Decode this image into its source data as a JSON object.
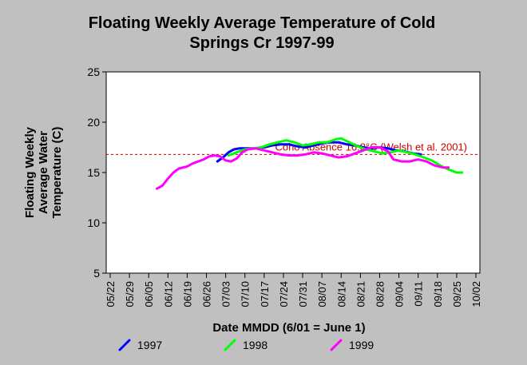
{
  "chart_data": {
    "type": "line",
    "title_lines": [
      "Floating Weekly Average Temperature of Cold",
      "Springs Cr 1997-99"
    ],
    "ylabel_lines": [
      "Floating Weekly",
      "Average Water",
      "Temperature (C)"
    ],
    "xlabel": "Date MMDD (6/01 = June 1)",
    "ylim": [
      5,
      25
    ],
    "yticks": [
      5,
      10,
      15,
      20,
      25
    ],
    "x_start": "05/22",
    "x_end": "10/02",
    "xtick_labels": [
      "05/22",
      "05/29",
      "06/05",
      "06/12",
      "06/19",
      "06/26",
      "07/03",
      "07/10",
      "07/17",
      "07/24",
      "07/31",
      "08/07",
      "08/14",
      "08/21",
      "08/28",
      "09/04",
      "09/11",
      "09/18",
      "09/25",
      "10/02"
    ],
    "reference_line": {
      "y": 16.8,
      "label": "Coho Absence 16.8°C (Welsh et al. 2001)",
      "color": "#cc0000"
    },
    "series": [
      {
        "name": "1997",
        "color": "#0000ff",
        "points": [
          [
            "06/30",
            16.1
          ],
          [
            "07/02",
            16.5
          ],
          [
            "07/04",
            17.0
          ],
          [
            "07/06",
            17.3
          ],
          [
            "07/08",
            17.4
          ],
          [
            "07/11",
            17.4
          ],
          [
            "07/14",
            17.4
          ],
          [
            "07/17",
            17.5
          ],
          [
            "07/20",
            17.7
          ],
          [
            "07/23",
            17.8
          ],
          [
            "07/26",
            17.8
          ],
          [
            "07/29",
            17.6
          ],
          [
            "08/01",
            17.5
          ],
          [
            "08/04",
            17.7
          ],
          [
            "08/07",
            17.9
          ],
          [
            "08/10",
            18.0
          ],
          [
            "08/13",
            18.0
          ],
          [
            "08/16",
            17.8
          ],
          [
            "08/19",
            17.7
          ],
          [
            "08/22",
            17.5
          ],
          [
            "08/25",
            17.4
          ],
          [
            "08/28",
            17.5
          ],
          [
            "08/31",
            17.4
          ],
          [
            "09/03",
            17.2
          ],
          [
            "09/06",
            17.1
          ],
          [
            "09/09",
            16.9
          ],
          [
            "09/12",
            16.8
          ]
        ]
      },
      {
        "name": "1998",
        "color": "#00ff00",
        "points": [
          [
            "07/04",
            16.7
          ],
          [
            "07/07",
            17.0
          ],
          [
            "07/10",
            17.3
          ],
          [
            "07/13",
            17.4
          ],
          [
            "07/16",
            17.5
          ],
          [
            "07/19",
            17.8
          ],
          [
            "07/22",
            18.0
          ],
          [
            "07/25",
            18.2
          ],
          [
            "07/28",
            18.0
          ],
          [
            "07/31",
            17.7
          ],
          [
            "08/03",
            17.8
          ],
          [
            "08/06",
            18.0
          ],
          [
            "08/09",
            18.0
          ],
          [
            "08/12",
            18.3
          ],
          [
            "08/14",
            18.4
          ],
          [
            "08/17",
            18.0
          ],
          [
            "08/20",
            17.6
          ],
          [
            "08/23",
            17.3
          ],
          [
            "08/26",
            17.1
          ],
          [
            "08/29",
            16.9
          ],
          [
            "09/01",
            17.0
          ],
          [
            "09/04",
            17.2
          ],
          [
            "09/07",
            17.0
          ],
          [
            "09/10",
            16.8
          ],
          [
            "09/13",
            16.5
          ],
          [
            "09/16",
            16.2
          ],
          [
            "09/19",
            15.7
          ],
          [
            "09/22",
            15.3
          ],
          [
            "09/25",
            15.0
          ],
          [
            "09/27",
            15.0
          ]
        ]
      },
      {
        "name": "1999",
        "color": "#ff00ff",
        "points": [
          [
            "06/08",
            13.4
          ],
          [
            "06/10",
            13.7
          ],
          [
            "06/12",
            14.4
          ],
          [
            "06/14",
            15.0
          ],
          [
            "06/16",
            15.4
          ],
          [
            "06/19",
            15.6
          ],
          [
            "06/21",
            15.9
          ],
          [
            "06/23",
            16.1
          ],
          [
            "06/25",
            16.3
          ],
          [
            "06/27",
            16.6
          ],
          [
            "06/29",
            16.7
          ],
          [
            "07/01",
            16.6
          ],
          [
            "07/03",
            16.2
          ],
          [
            "07/05",
            16.1
          ],
          [
            "07/07",
            16.4
          ],
          [
            "07/09",
            17.0
          ],
          [
            "07/11",
            17.3
          ],
          [
            "07/14",
            17.4
          ],
          [
            "07/17",
            17.2
          ],
          [
            "07/20",
            17.0
          ],
          [
            "07/23",
            16.8
          ],
          [
            "07/26",
            16.7
          ],
          [
            "07/29",
            16.7
          ],
          [
            "08/01",
            16.8
          ],
          [
            "08/04",
            17.0
          ],
          [
            "08/07",
            16.9
          ],
          [
            "08/10",
            16.7
          ],
          [
            "08/13",
            16.5
          ],
          [
            "08/16",
            16.6
          ],
          [
            "08/19",
            16.9
          ],
          [
            "08/22",
            17.2
          ],
          [
            "08/25",
            17.5
          ],
          [
            "08/28",
            17.5
          ],
          [
            "08/31",
            17.1
          ],
          [
            "09/02",
            16.3
          ],
          [
            "09/05",
            16.1
          ],
          [
            "09/08",
            16.1
          ],
          [
            "09/11",
            16.3
          ],
          [
            "09/14",
            16.1
          ],
          [
            "09/17",
            15.7
          ],
          [
            "09/20",
            15.5
          ],
          [
            "09/22",
            15.5
          ]
        ]
      }
    ],
    "legend_placement": "bottom",
    "grid": false
  }
}
